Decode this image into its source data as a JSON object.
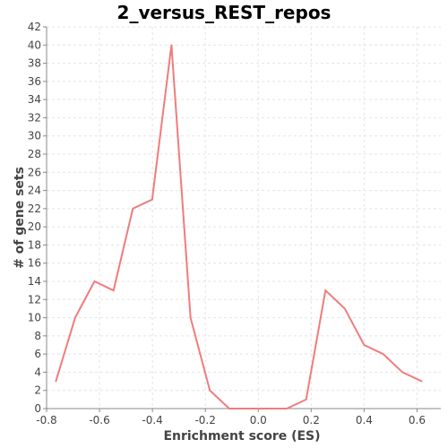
{
  "chart_data": {
    "type": "line",
    "title": "2_versus_REST_repos",
    "xlabel": "Enrichment score (ES)",
    "ylabel": "# of gene sets",
    "xlim": [
      -0.8,
      0.69
    ],
    "ylim": [
      0,
      42
    ],
    "xticks": [
      -0.8,
      -0.6,
      -0.4,
      -0.2,
      0.0,
      0.2,
      0.4,
      0.6
    ],
    "xtick_labels": [
      "-0.8",
      "-0.6",
      "-0.4",
      "-0.2",
      "0.0",
      "0.2",
      "0.4",
      "0.6"
    ],
    "yticks": [
      0,
      2,
      4,
      6,
      8,
      10,
      12,
      14,
      16,
      18,
      20,
      22,
      24,
      26,
      28,
      30,
      32,
      34,
      36,
      38,
      40,
      42
    ],
    "ytick_labels": [
      "0",
      "2",
      "4",
      "6",
      "8",
      "10",
      "12",
      "14",
      "16",
      "18",
      "20",
      "22",
      "24",
      "26",
      "28",
      "30",
      "32",
      "34",
      "36",
      "38",
      "40",
      "42"
    ],
    "grid": true,
    "series": [
      {
        "color": "#f07c7c",
        "x": [
          -0.765,
          -0.692,
          -0.619,
          -0.547,
          -0.474,
          -0.401,
          -0.328,
          -0.256,
          -0.183,
          -0.11,
          -0.037,
          0.036,
          0.108,
          0.181,
          0.254,
          0.327,
          0.4,
          0.472,
          0.545,
          0.618
        ],
        "y": [
          3,
          10,
          14,
          13,
          22,
          23,
          40,
          10,
          2,
          0,
          0,
          0,
          0,
          1,
          13,
          11,
          7,
          6,
          4,
          3
        ]
      }
    ]
  }
}
